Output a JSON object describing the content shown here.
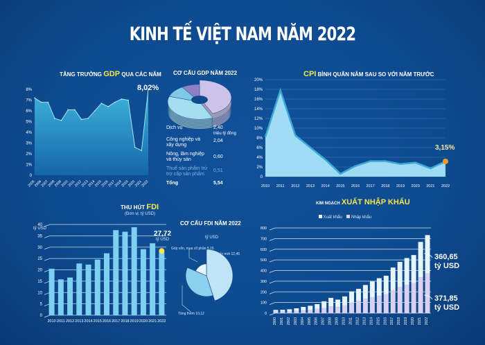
{
  "header": {
    "title": "KINH TẾ VIỆT NAM NĂM 2022"
  },
  "colors": {
    "background": "#0e4a8e",
    "highlight": "#f6e84a",
    "area": "#5cc3e6",
    "marker": "#f39a2b"
  },
  "chart_data": [
    {
      "id": "gdp_growth",
      "type": "area",
      "title_pre": "Tăng trưởng",
      "title_hl": "GDP",
      "title_post": "qua các năm",
      "x": [
        2005,
        2006,
        2007,
        2008,
        2009,
        2010,
        2011,
        2012,
        2013,
        2014,
        2015,
        2016,
        2017,
        2018,
        2019,
        2020,
        2021,
        2022
      ],
      "values": [
        7.2,
        6.8,
        6.8,
        5.3,
        5.1,
        6.1,
        6.1,
        5.2,
        5.3,
        6.0,
        6.7,
        6.4,
        6.8,
        7.1,
        7.0,
        2.6,
        2.3,
        8.02
      ],
      "yticks": [
        "0",
        "1%",
        "2%",
        "3%",
        "4%",
        "5%",
        "6%",
        "7%",
        "8%"
      ],
      "ylim": [
        0,
        8
      ],
      "annotation": "8,02%"
    },
    {
      "id": "gdp_structure",
      "type": "pie",
      "title": "Cơ cấu GDP năm 2022",
      "slices": [
        {
          "label": "Dịch vụ",
          "value": 2.4,
          "value_label": "2,40",
          "unit": "triệu tỷ đồng",
          "color": "#cbc3ea"
        },
        {
          "label": "Công nghiệp và xây dựng",
          "value": 2.04,
          "value_label": "2,04",
          "color": "#a6dcf0"
        },
        {
          "label": "Nông, lâm nghiệp và thủy sản",
          "value": 0.6,
          "value_label": "0,60",
          "color": "#7fc8e6"
        },
        {
          "label": "Thuế sản phẩm trừ trợ cấp sản phẩm",
          "value": 0.51,
          "value_label": "0,51",
          "color": "#8e80c8"
        }
      ],
      "total_label": "Tổng",
      "total_value": "5,54"
    },
    {
      "id": "cpi",
      "type": "area",
      "title_hl": "CPI",
      "title_post": "bình quân năm sau so với năm trước",
      "x": [
        2010,
        2011,
        2012,
        2013,
        2014,
        2015,
        2016,
        2017,
        2018,
        2019,
        2020,
        2021,
        2022
      ],
      "values": [
        8.2,
        17.8,
        8.5,
        6.0,
        3.5,
        0.6,
        2.2,
        3.2,
        3.2,
        2.6,
        2.9,
        1.7,
        3.15
      ],
      "yticks": [
        "0",
        "2%",
        "4%",
        "6%",
        "8%",
        "10%",
        "12%",
        "14%",
        "16%",
        "18%",
        "20%"
      ],
      "ylim": [
        0,
        20
      ],
      "annotation": "3,15%"
    },
    {
      "id": "fdi",
      "type": "bar",
      "title_pre": "Thu hút",
      "title_hl": "FDI",
      "subtitle": "(Đơn vị: tỷ USD)",
      "x": [
        2010,
        2011,
        2012,
        2013,
        2014,
        2015,
        2016,
        2017,
        2018,
        2019,
        2020,
        2021,
        2022
      ],
      "values": [
        20.5,
        15.8,
        16.6,
        22.8,
        22.3,
        24.5,
        27.3,
        37.5,
        36.8,
        38.8,
        29.1,
        31.7,
        27.72
      ],
      "yticks": [
        "0",
        "5",
        "10",
        "15",
        "20",
        "25",
        "30",
        "35",
        "40"
      ],
      "yunit": "tỷ USD",
      "ylim": [
        0,
        40
      ],
      "annotation": "27,72",
      "annotation_unit": "tỷ USD"
    },
    {
      "id": "fdi_structure",
      "type": "pie",
      "title": "Cơ cấu FDI năm 2022",
      "unit": "tỷ USD",
      "slices": [
        {
          "label": "Cấp mới 12,45",
          "value": 12.45,
          "color": "#bfe4f6"
        },
        {
          "label": "Tăng thêm 10,12",
          "value": 10.12,
          "color": "#8ccfee"
        },
        {
          "label": "Góp vốn, mua cổ phần 5,15",
          "value": 5.15,
          "color": "#e6f4fb"
        }
      ]
    },
    {
      "id": "trade",
      "type": "bar",
      "stacked": true,
      "title_pre": "Kim ngạch",
      "title_hl": "xuất nhập khẩu",
      "x": [
        2000,
        2001,
        2002,
        2003,
        2004,
        2005,
        2006,
        2007,
        2008,
        2009,
        2010,
        2011,
        2012,
        2013,
        2014,
        2015,
        2016,
        2017,
        2018,
        2019,
        2020,
        2021,
        2022
      ],
      "series": [
        {
          "name": "Xuất khẩu",
          "color": "#d9d1f2",
          "values": [
            14.5,
            15.0,
            16.7,
            20.1,
            26.5,
            32.4,
            39.8,
            48.6,
            62.7,
            57.1,
            72.2,
            96.9,
            114.5,
            132.0,
            150.0,
            162.0,
            176.6,
            215.0,
            243.5,
            264.2,
            282.7,
            336.3,
            371.85
          ]
        },
        {
          "name": "Nhập khẩu",
          "color": "#e6f5fc",
          "values": [
            15.6,
            16.2,
            19.7,
            25.3,
            32.0,
            36.8,
            44.9,
            62.8,
            80.7,
            69.9,
            84.8,
            106.7,
            113.8,
            132.0,
            148.0,
            166.0,
            174.8,
            213.0,
            237.5,
            253.1,
            262.7,
            332.2,
            360.65
          ]
        }
      ],
      "yticks": [
        "0",
        "100",
        "200",
        "300",
        "400",
        "500",
        "600",
        "700",
        "800"
      ],
      "ylim": [
        0,
        800
      ],
      "annotations": [
        {
          "value": "360,65",
          "unit": "tỷ USD"
        },
        {
          "value": "371,85",
          "unit": "tỷ USD"
        }
      ]
    }
  ]
}
